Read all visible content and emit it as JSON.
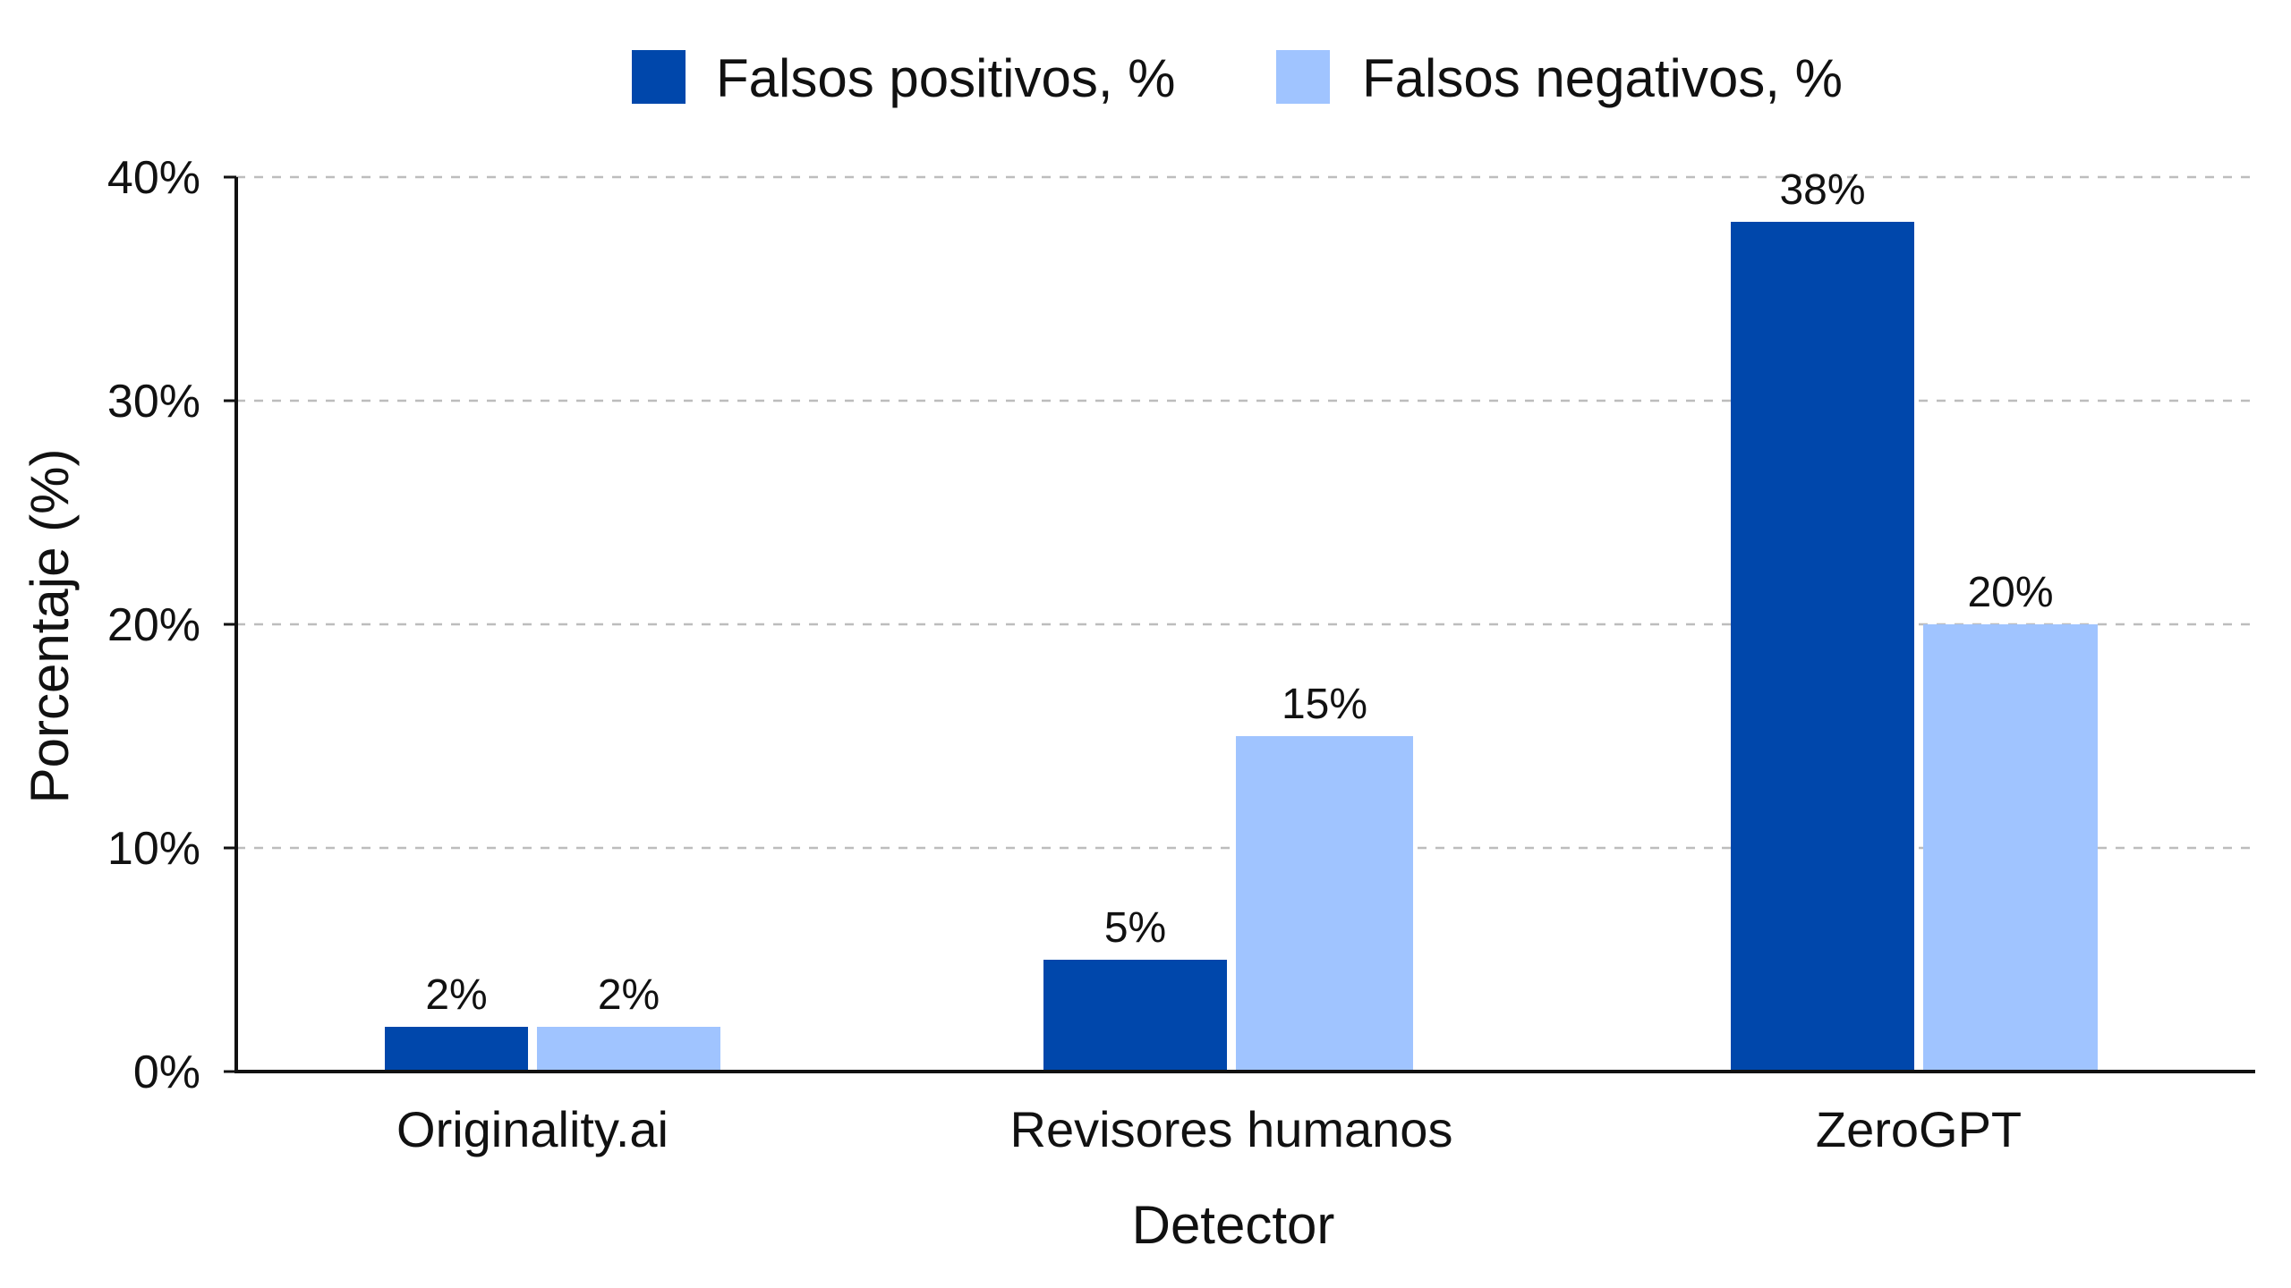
{
  "chart_data": {
    "type": "bar",
    "title": "",
    "xlabel": "Detector",
    "ylabel": "Porcentaje (%)",
    "categories": [
      "Originality.ai",
      "Revisores humanos",
      "ZeroGPT"
    ],
    "series": [
      {
        "name": "Falsos positivos, %",
        "values": [
          2,
          5,
          38
        ],
        "labels": [
          "2%",
          "5%",
          "38%"
        ],
        "color": "#0047AB"
      },
      {
        "name": "Falsos negativos, %",
        "values": [
          2,
          15,
          20
        ],
        "labels": [
          "2%",
          "15%",
          "20%"
        ],
        "color": "#A0C4FF"
      }
    ],
    "ylim": [
      0,
      40
    ],
    "yticks": [
      0,
      10,
      20,
      30,
      40
    ],
    "ytick_labels": [
      "0%",
      "10%",
      "20%",
      "30%",
      "40%"
    ],
    "grid": true,
    "legend_position": "top"
  }
}
